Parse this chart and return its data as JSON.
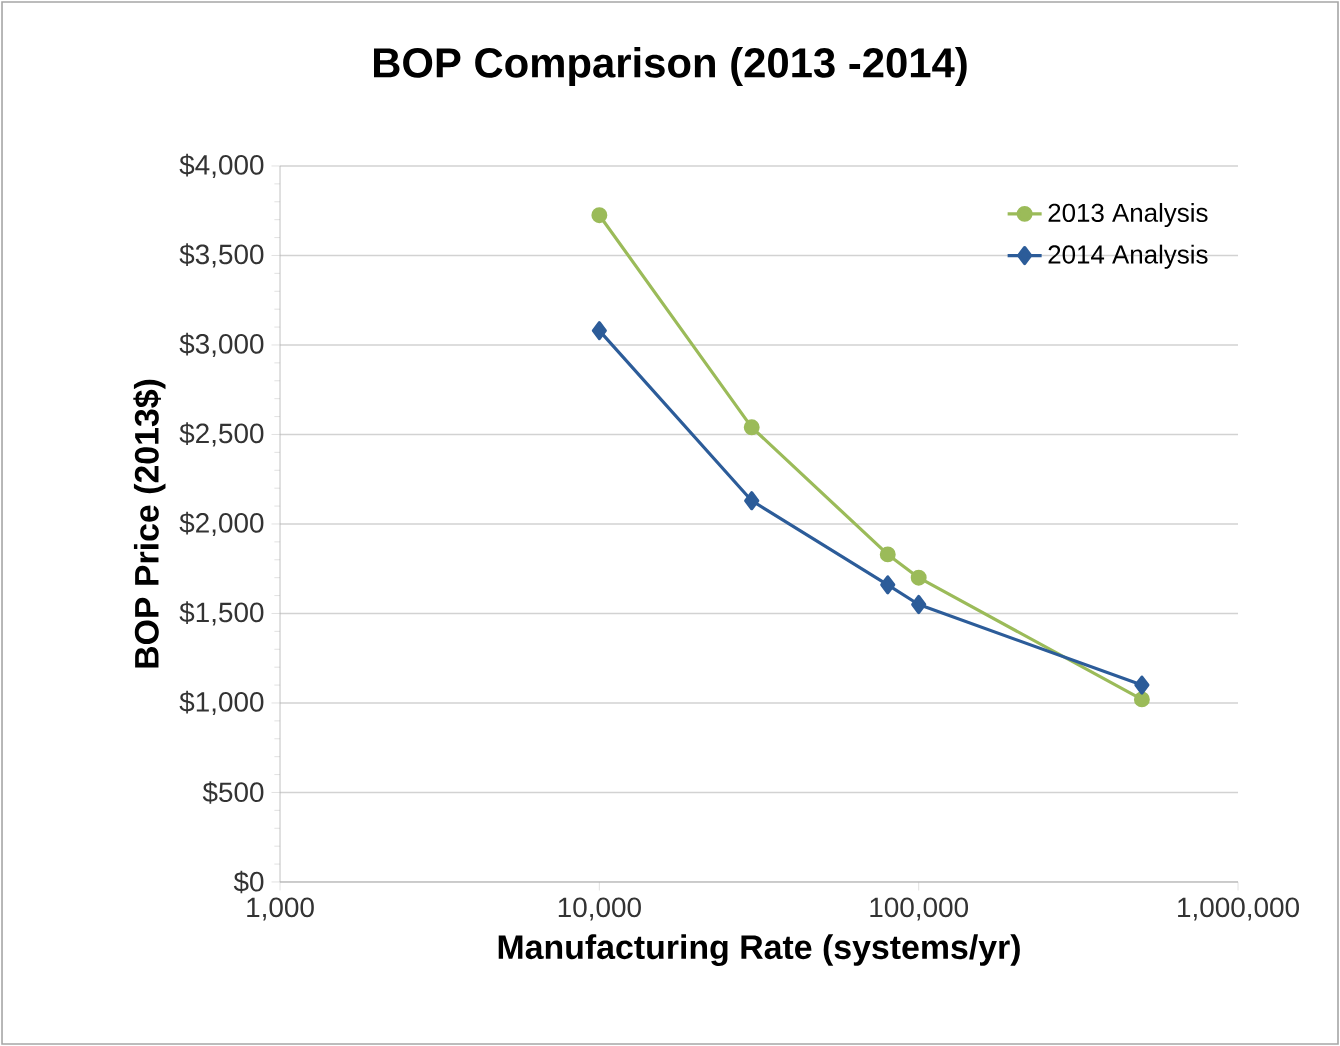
{
  "chart_data": {
    "type": "line",
    "title": "BOP Comparison (2013 -2014)",
    "xlabel": "Manufacturing Rate (systems/yr)",
    "ylabel": "BOP Price (2013$)",
    "log": "x",
    "grid": "y",
    "legend": "top right",
    "xlim": [
      1000,
      1000000
    ],
    "xticks": [
      {
        "value": 1000,
        "label": "1,000"
      },
      {
        "value": 10000,
        "label": "10,000"
      },
      {
        "value": 100000,
        "label": "100,000"
      },
      {
        "value": 1000000,
        "label": "1,000,000"
      }
    ],
    "ylim": [
      0,
      4000
    ],
    "yticks": [
      {
        "value": 0,
        "label": "$0"
      },
      {
        "value": 500,
        "label": "$500"
      },
      {
        "value": 1000,
        "label": "$1,000"
      },
      {
        "value": 1500,
        "label": "$1,500"
      },
      {
        "value": 2000,
        "label": "$2,000"
      },
      {
        "value": 2500,
        "label": "$2,500"
      },
      {
        "value": 3000,
        "label": "$3,000"
      },
      {
        "value": 3500,
        "label": "$3,500"
      },
      {
        "value": 4000,
        "label": "$4,000"
      }
    ],
    "x": [
      10000,
      30000,
      80000,
      100000,
      500000
    ],
    "series": [
      {
        "name": "2013 Analysis",
        "color": "#9bbb59",
        "marker": "circle",
        "values": [
          3725,
          2540,
          1830,
          1700,
          1020
        ]
      },
      {
        "name": "2014 Analysis",
        "color": "#2c5c99",
        "marker": "diamond",
        "values": [
          3080,
          2130,
          1660,
          1550,
          1100
        ]
      }
    ]
  }
}
